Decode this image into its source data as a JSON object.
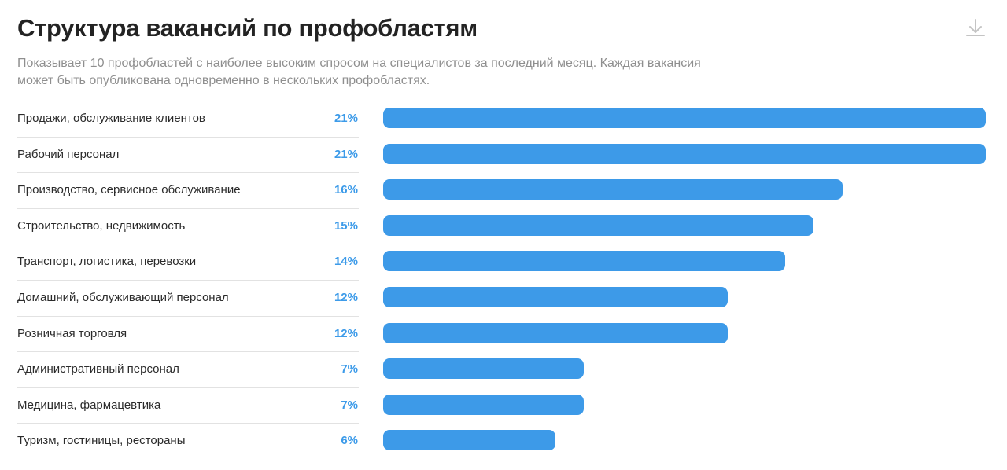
{
  "header": {
    "title": "Структура вакансий по профобластям",
    "subtitle": "Показывает 10 профобластей с наиболее высоким спросом на специалистов за последний месяц. Каждая вакансия может быть опубликована одновременно в нескольких профобластях.",
    "download_icon": "download-icon"
  },
  "colors": {
    "bar": "#3d9ae8",
    "percent_text": "#3d9be9",
    "subtitle": "#8f8f8f"
  },
  "chart_data": {
    "type": "bar",
    "orientation": "horizontal",
    "categories": [
      "Продажи, обслуживание клиентов",
      "Рабочий персонал",
      "Производство, сервисное обслуживание",
      "Строительство, недвижимость",
      "Транспорт, логистика, перевозки",
      "Домашний, обслуживающий персонал",
      "Розничная торговля",
      "Административный персонал",
      "Медицина, фармацевтика",
      "Туризм, гостиницы, рестораны"
    ],
    "values": [
      21,
      21,
      16,
      15,
      14,
      12,
      12,
      7,
      7,
      6
    ],
    "value_labels": [
      "21%",
      "21%",
      "16%",
      "15%",
      "14%",
      "12%",
      "12%",
      "7%",
      "7%",
      "6%"
    ],
    "xlim": [
      0,
      21
    ],
    "grid": false,
    "legend": "none"
  }
}
